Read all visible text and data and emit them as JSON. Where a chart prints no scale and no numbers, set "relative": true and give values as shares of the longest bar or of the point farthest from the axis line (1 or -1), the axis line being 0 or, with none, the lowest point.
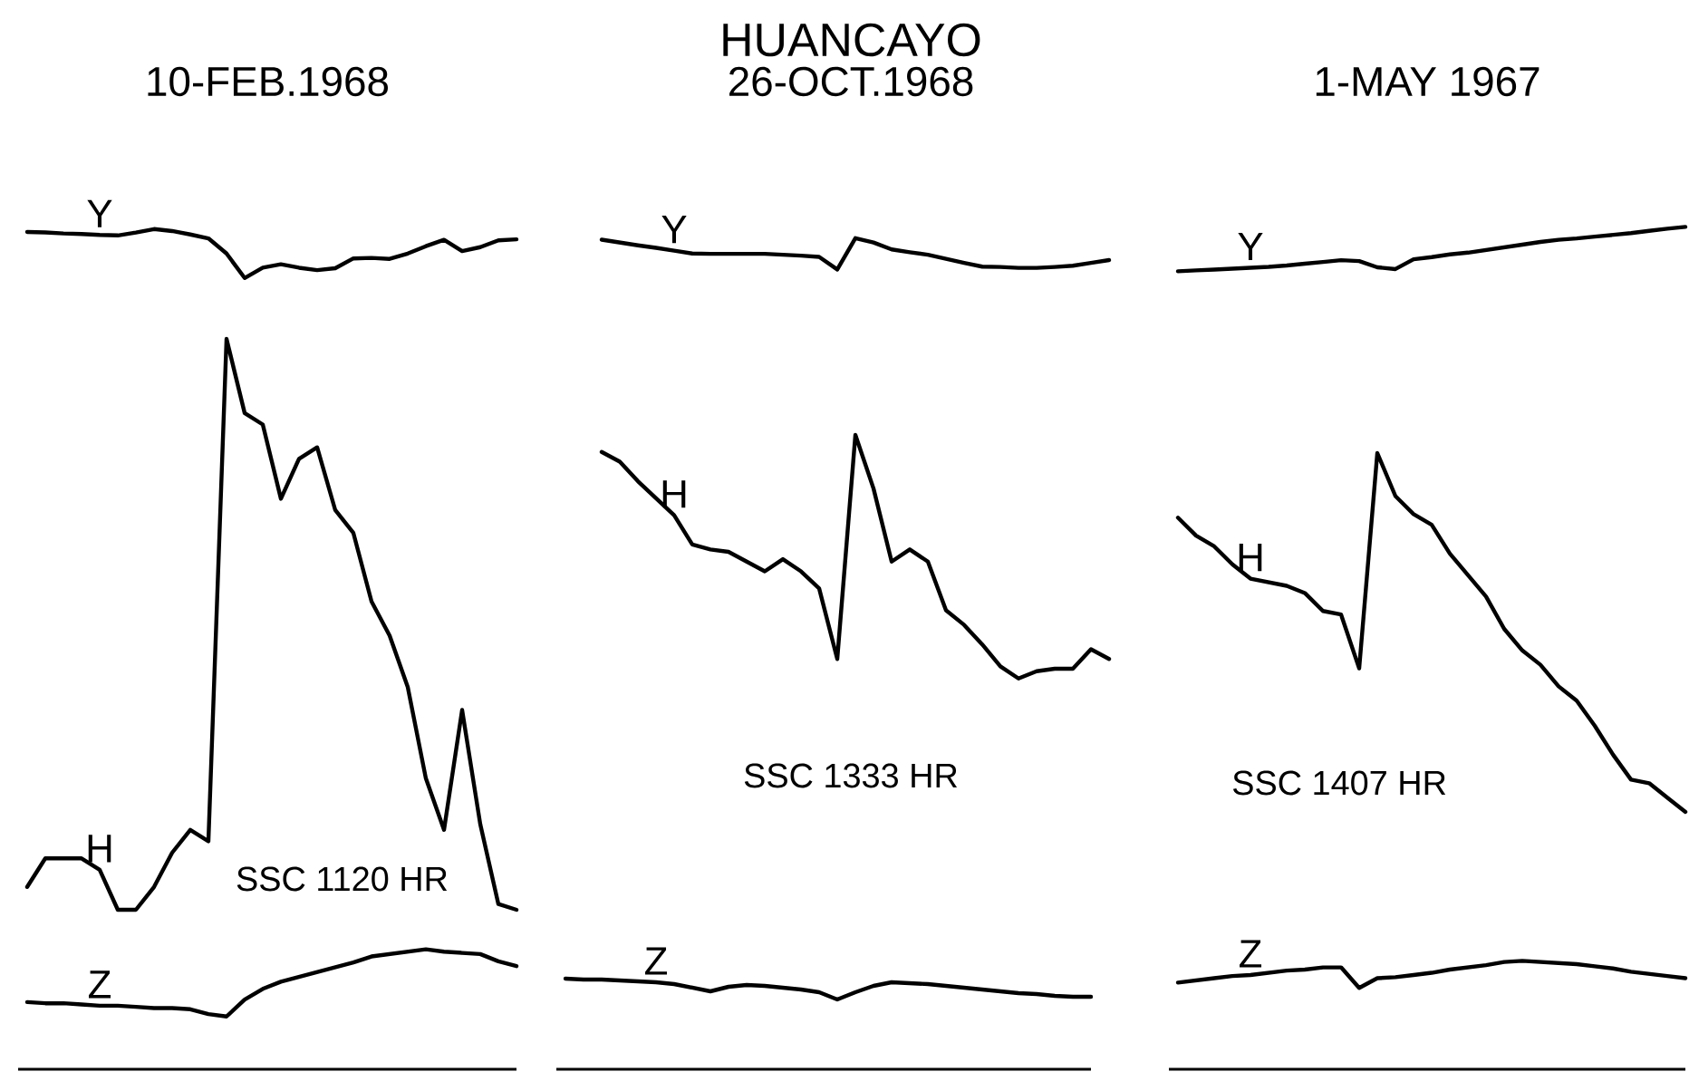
{
  "chart_data": [
    {
      "type": "line",
      "title": "10-FEB.1968",
      "relative": true,
      "categories": [
        null,
        null,
        null,
        null,
        null,
        null,
        null,
        null,
        null,
        null,
        null,
        null,
        null,
        null,
        null,
        null,
        null,
        null,
        null,
        null,
        null,
        null,
        null,
        null,
        null,
        null,
        null,
        null
      ],
      "series": [
        {
          "name": "Y",
          "color": "#000000",
          "values": [
            0.94,
            0.93,
            0.91,
            0.9,
            0.88,
            0.87,
            0.93,
            1,
            0.96,
            0.89,
            0.81,
            0.5,
            0,
            0.21,
            0.28,
            0.21,
            0.16,
            0.2,
            0.4,
            0.41,
            0.39,
            0.5,
            0.65,
            0.78,
            0.55,
            0.63,
            0.77,
            0.79
          ]
        }
      ]
    },
    {
      "type": "line",
      "relative": true,
      "annotations": [
        "SSC 1120 HR"
      ],
      "categories": [
        null,
        null,
        null,
        null,
        null,
        null,
        null,
        null,
        null,
        null,
        null,
        null,
        null,
        null,
        null,
        null,
        null,
        null,
        null,
        null,
        null,
        null,
        null,
        null,
        null,
        null,
        null,
        null
      ],
      "series": [
        {
          "name": "H",
          "color": "#000000",
          "values": [
            0.04,
            0.09,
            0.09,
            0.09,
            0.07,
            0.0,
            0.0,
            0.04,
            0.1,
            0.14,
            0.12,
            1,
            0.87,
            0.85,
            0.72,
            0.79,
            0.81,
            0.7,
            0.66,
            0.54,
            0.48,
            0.39,
            0.23,
            0.14,
            0.35,
            0.15,
            0.01,
            0
          ]
        }
      ]
    },
    {
      "type": "line",
      "relative": true,
      "categories": [
        null,
        null,
        null,
        null,
        null,
        null,
        null,
        null,
        null,
        null,
        null,
        null,
        null,
        null,
        null,
        null,
        null,
        null,
        null,
        null,
        null,
        null,
        null,
        null,
        null,
        null,
        null,
        null
      ],
      "series": [
        {
          "name": "Z",
          "color": "#000000",
          "values": [
            0.56,
            0.55,
            0.55,
            0.54,
            0.53,
            0.53,
            0.52,
            0.51,
            0.51,
            0.5,
            0.46,
            0.44,
            0.58,
            0.67,
            0.73,
            0.77,
            0.81,
            0.85,
            0.89,
            0.94,
            0.96,
            0.98,
            1,
            0.98,
            0.97,
            0.96,
            0.9,
            0.86
          ]
        }
      ]
    },
    {
      "type": "line",
      "title": "HUANCAYO",
      "subtitle": "26-OCT.1968",
      "relative": true,
      "categories": [
        null,
        null,
        null,
        null,
        null,
        null,
        null,
        null,
        null,
        null,
        null,
        null,
        null,
        null,
        null,
        null,
        null,
        null,
        null,
        null,
        null,
        null,
        null,
        null,
        null,
        null,
        null,
        null,
        null
      ],
      "series": [
        {
          "name": "Y",
          "color": "#000000",
          "values": [
            0.95,
            0.86,
            0.77,
            0.69,
            0.6,
            0.51,
            0.5,
            0.5,
            0.5,
            0.5,
            0.47,
            0.44,
            0.4,
            0,
            1,
            0.86,
            0.64,
            0.55,
            0.47,
            0.34,
            0.21,
            0.09,
            0.08,
            0.05,
            0.05,
            0.08,
            0.12,
            0.21,
            0.3
          ]
        }
      ]
    },
    {
      "type": "line",
      "relative": true,
      "annotations": [
        "SSC 1333 HR"
      ],
      "categories": [
        null,
        null,
        null,
        null,
        null,
        null,
        null,
        null,
        null,
        null,
        null,
        null,
        null,
        null,
        null,
        null,
        null,
        null,
        null,
        null,
        null,
        null,
        null,
        null,
        null,
        null,
        null,
        null,
        null
      ],
      "series": [
        {
          "name": "H",
          "color": "#000000",
          "values": [
            0.93,
            0.89,
            0.81,
            0.74,
            0.67,
            0.55,
            0.53,
            0.52,
            0.48,
            0.44,
            0.49,
            0.44,
            0.37,
            0.08,
            1,
            0.78,
            0.48,
            0.53,
            0.48,
            0.28,
            0.22,
            0.14,
            0.05,
            0,
            0.03,
            0.04,
            0.04,
            0.12,
            0.08
          ]
        }
      ]
    },
    {
      "type": "line",
      "relative": true,
      "categories": [
        null,
        null,
        null,
        null,
        null,
        null,
        null,
        null,
        null,
        null,
        null,
        null,
        null,
        null,
        null,
        null,
        null,
        null,
        null,
        null,
        null,
        null,
        null,
        null,
        null,
        null,
        null,
        null,
        null,
        null
      ],
      "series": [
        {
          "name": "Z",
          "color": "#000000",
          "values": [
            1,
            0.99,
            0.99,
            0.98,
            0.97,
            0.96,
            0.94,
            0.9,
            0.86,
            0.91,
            0.93,
            0.92,
            0.9,
            0.88,
            0.85,
            0.77,
            0.85,
            0.92,
            0.96,
            0.95,
            0.94,
            0.92,
            0.9,
            0.88,
            0.86,
            0.84,
            0.83,
            0.81,
            0.8,
            0.8
          ]
        }
      ]
    },
    {
      "type": "line",
      "title": "1-MAY 1967",
      "relative": true,
      "categories": [
        null,
        null,
        null,
        null,
        null,
        null,
        null,
        null,
        null,
        null,
        null,
        null,
        null,
        null,
        null,
        null,
        null,
        null,
        null,
        null,
        null,
        null,
        null,
        null,
        null,
        null,
        null,
        null,
        null
      ],
      "series": [
        {
          "name": "Y",
          "color": "#000000",
          "values": [
            0,
            0.02,
            0.04,
            0.06,
            0.08,
            0.1,
            0.13,
            0.17,
            0.21,
            0.25,
            0.23,
            0.09,
            0.05,
            0.27,
            0.32,
            0.38,
            0.42,
            0.48,
            0.54,
            0.6,
            0.66,
            0.71,
            0.74,
            0.78,
            0.82,
            0.86,
            0.91,
            0.96,
            1
          ]
        }
      ]
    },
    {
      "type": "line",
      "relative": true,
      "annotations": [
        "SSC 1407 HR"
      ],
      "categories": [
        null,
        null,
        null,
        null,
        null,
        null,
        null,
        null,
        null,
        null,
        null,
        null,
        null,
        null,
        null,
        null,
        null,
        null,
        null,
        null,
        null,
        null,
        null,
        null,
        null,
        null,
        null,
        null,
        null
      ],
      "series": [
        {
          "name": "H",
          "color": "#000000",
          "values": [
            0.82,
            0.77,
            0.74,
            0.69,
            0.65,
            0.64,
            0.63,
            0.61,
            0.56,
            0.55,
            0.4,
            1,
            0.88,
            0.83,
            0.8,
            0.72,
            0.66,
            0.6,
            0.51,
            0.45,
            0.41,
            0.35,
            0.31,
            0.24,
            0.16,
            0.09,
            0.08,
            0.04,
            0
          ]
        }
      ]
    },
    {
      "type": "line",
      "relative": true,
      "categories": [
        null,
        null,
        null,
        null,
        null,
        null,
        null,
        null,
        null,
        null,
        null,
        null,
        null,
        null,
        null,
        null,
        null,
        null,
        null,
        null,
        null,
        null,
        null,
        null,
        null,
        null,
        null,
        null,
        null
      ],
      "series": [
        {
          "name": "Z",
          "color": "#000000",
          "values": [
            0.8,
            0.82,
            0.84,
            0.86,
            0.87,
            0.89,
            0.91,
            0.92,
            0.94,
            0.94,
            0.75,
            0.84,
            0.85,
            0.87,
            0.89,
            0.92,
            0.94,
            0.96,
            0.99,
            1,
            0.99,
            0.98,
            0.97,
            0.95,
            0.93,
            0.9,
            0.88,
            0.86,
            0.84
          ]
        }
      ]
    }
  ]
}
